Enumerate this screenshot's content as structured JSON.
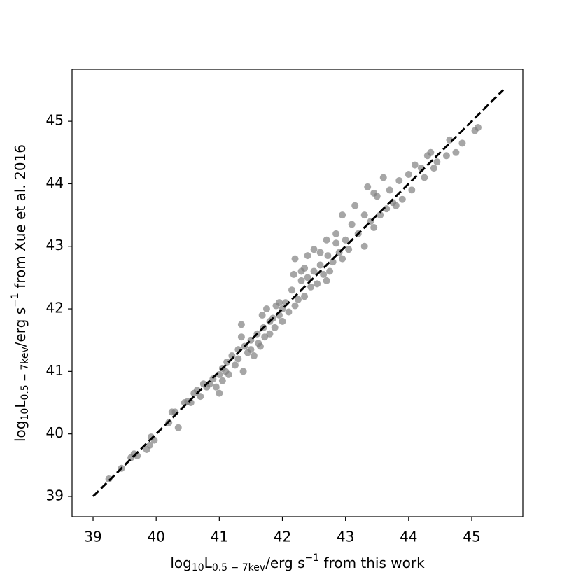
{
  "chart_data": {
    "type": "scatter",
    "xlabel": [
      "log",
      "10",
      "L",
      "0.5 − 7kev",
      "/erg s",
      "−1",
      " from this work"
    ],
    "ylabel": [
      "log",
      "10",
      "L",
      "0.5 − 7kev",
      "/erg s",
      "−1",
      " from Xue et al. 2016"
    ],
    "xlim": [
      38.667,
      45.81
    ],
    "ylim": [
      38.675,
      45.83
    ],
    "xticks": [
      39,
      40,
      41,
      42,
      43,
      44,
      45
    ],
    "yticks": [
      39,
      40,
      41,
      42,
      43,
      44,
      45
    ],
    "series": [
      {
        "color": "#808080",
        "x": [
          39.25,
          39.45,
          39.6,
          39.65,
          39.7,
          39.85,
          39.9,
          39.92,
          39.97,
          40.2,
          40.25,
          40.3,
          40.35,
          40.45,
          40.5,
          40.55,
          40.6,
          40.65,
          40.7,
          40.75,
          40.8,
          40.85,
          40.9,
          40.95,
          41.0,
          41.0,
          41.05,
          41.1,
          41.12,
          41.15,
          41.2,
          41.25,
          41.3,
          41.3,
          41.35,
          41.35,
          41.38,
          41.4,
          41.45,
          41.5,
          41.55,
          41.6,
          41.62,
          41.65,
          41.68,
          41.7,
          41.72,
          41.75,
          41.8,
          41.8,
          41.85,
          41.88,
          41.9,
          41.95,
          42.0,
          42.0,
          42.05,
          42.1,
          42.15,
          42.18,
          42.2,
          42.25,
          42.3,
          42.3,
          42.35,
          42.4,
          42.4,
          42.45,
          42.5,
          42.5,
          42.55,
          42.6,
          42.65,
          42.7,
          42.72,
          42.75,
          42.8,
          42.85,
          42.9,
          42.95,
          42.95,
          43.0,
          43.05,
          43.1,
          43.15,
          43.2,
          43.3,
          43.3,
          43.35,
          43.4,
          43.45,
          43.5,
          43.55,
          43.6,
          43.65,
          43.7,
          43.75,
          43.8,
          43.85,
          43.9,
          44.0,
          44.05,
          44.1,
          44.2,
          44.3,
          44.35,
          44.4,
          44.45,
          44.6,
          44.65,
          44.75,
          44.85,
          45.05,
          45.1,
          42.2,
          42.35,
          41.95,
          42.6,
          42.85,
          43.45,
          44.25,
          41.5,
          41.05,
          42.7
        ],
        "y": [
          39.28,
          39.45,
          39.62,
          39.68,
          39.65,
          39.75,
          39.82,
          39.95,
          39.9,
          40.18,
          40.35,
          40.35,
          40.1,
          40.5,
          40.52,
          40.5,
          40.65,
          40.7,
          40.6,
          40.8,
          40.75,
          40.8,
          40.88,
          40.75,
          40.65,
          40.95,
          41.05,
          41.0,
          41.15,
          40.95,
          41.25,
          41.1,
          41.35,
          41.2,
          41.75,
          41.55,
          41.0,
          41.4,
          41.3,
          41.5,
          41.25,
          41.6,
          41.45,
          41.4,
          41.9,
          41.7,
          41.55,
          42.0,
          41.8,
          41.6,
          41.85,
          41.7,
          42.05,
          41.9,
          42.0,
          41.8,
          42.1,
          41.95,
          42.3,
          42.55,
          42.05,
          42.15,
          42.45,
          42.6,
          42.2,
          42.5,
          42.85,
          42.35,
          42.6,
          42.95,
          42.4,
          42.7,
          42.55,
          43.1,
          42.85,
          42.6,
          42.75,
          43.2,
          42.9,
          43.5,
          42.8,
          43.1,
          42.95,
          43.35,
          43.65,
          43.2,
          43.5,
          43.0,
          43.95,
          43.4,
          43.3,
          43.8,
          43.5,
          44.1,
          43.6,
          43.9,
          43.7,
          43.65,
          44.05,
          43.75,
          44.15,
          43.9,
          44.3,
          44.25,
          44.45,
          44.5,
          44.25,
          44.35,
          44.45,
          44.7,
          44.5,
          44.65,
          44.85,
          44.9,
          42.8,
          42.65,
          42.1,
          42.9,
          43.05,
          43.85,
          44.1,
          41.35,
          40.85,
          42.45
        ]
      },
      {
        "type": "line",
        "color": "#000000",
        "dashed": true,
        "x": [
          39,
          45.5
        ],
        "y": [
          39,
          45.5
        ]
      }
    ]
  }
}
